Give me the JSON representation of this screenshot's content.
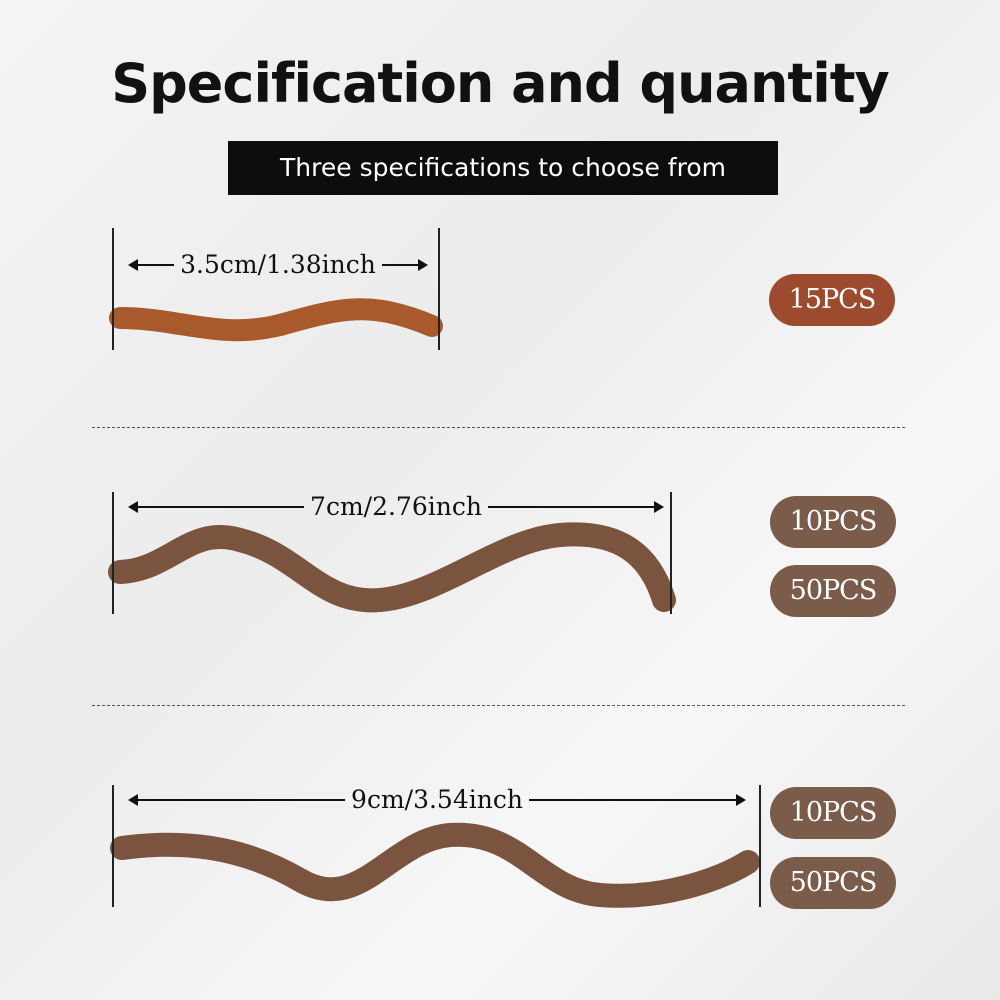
{
  "title": "Specification and quantity",
  "subtitle": "Three specifications to choose from",
  "colors": {
    "badge_small": "#9c4b2e",
    "badge": "#7b5b49",
    "worm_small": "#a85a2c",
    "worm": "#7a543f"
  },
  "specs": [
    {
      "size": "3.5cm/1.38inch",
      "quantities": [
        "15PCS"
      ]
    },
    {
      "size": "7cm/2.76inch",
      "quantities": [
        "10PCS",
        "50PCS"
      ]
    },
    {
      "size": "9cm/3.54inch",
      "quantities": [
        "10PCS",
        "50PCS"
      ]
    }
  ]
}
